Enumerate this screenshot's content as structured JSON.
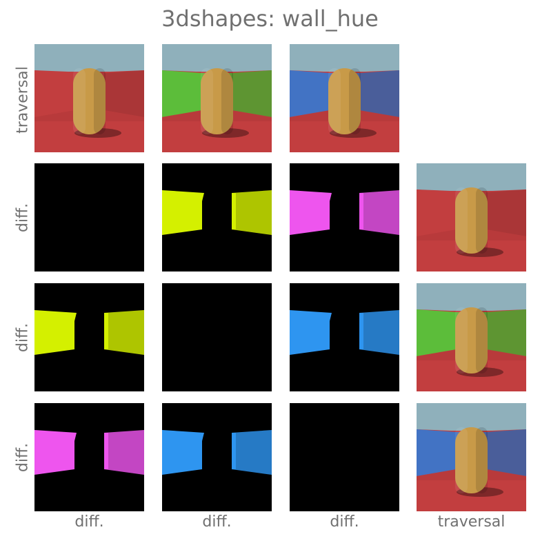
{
  "title": "3dshapes: wall_hue",
  "row_labels": [
    "traversal",
    "diff.",
    "diff.",
    "diff."
  ],
  "col_labels": [
    "diff.",
    "diff.",
    "diff.",
    "traversal"
  ],
  "colors": {
    "floor": "#c23e3f",
    "sky": "#8fb0bb",
    "object": "#c89a48",
    "wall_red": "#c23e3f",
    "wall_green": "#5cbd3a",
    "wall_blue": "#4273c4",
    "diff_yellow": "#d4f000",
    "diff_magenta": "#ee55ee",
    "diff_blue": "#2e95f0",
    "diff_bg": "#000000"
  },
  "grid": [
    [
      "scene:red",
      "scene:green",
      "scene:blue",
      "empty"
    ],
    [
      "black",
      "diff:yellow",
      "diff:magenta",
      "scene:red"
    ],
    [
      "diff:yellow",
      "black",
      "diff:blue",
      "scene:green"
    ],
    [
      "diff:magenta",
      "diff:blue",
      "black",
      "scene:blue"
    ]
  ]
}
